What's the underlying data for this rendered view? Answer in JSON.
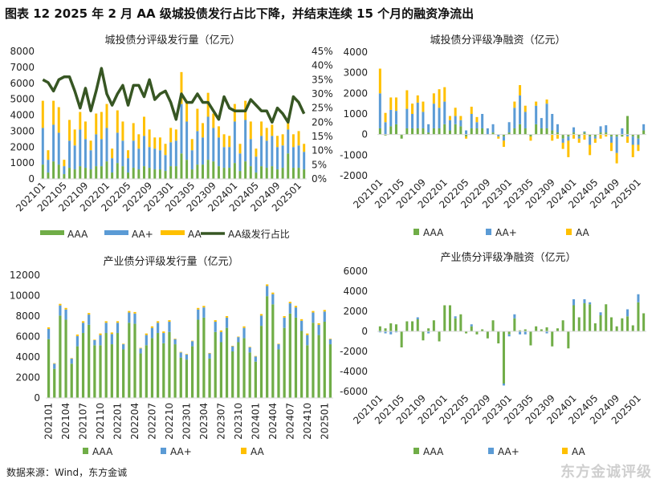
{
  "figure_title": "图表 12   2025 年 2 月 AA 级城投债发行占比下降，并结束连续 15 个月的融资净流出",
  "source": "数据来源：Wind，东方金诚",
  "watermark": "东方金诚评级",
  "colors": {
    "AAA": "#70ad47",
    "AA+": "#5b9bd5",
    "AA": "#ffc000",
    "line": "#375623"
  },
  "chart_data": [
    {
      "type": "bar",
      "stacked": true,
      "title": "城投债分评级发行量（亿元）",
      "ylim": [
        0,
        8000
      ],
      "yticks": [
        "0",
        "1000",
        "2000",
        "3000",
        "4000",
        "5000",
        "6000",
        "7000",
        "8000"
      ],
      "y2lim": [
        0,
        45
      ],
      "y2ticks": [
        "0%",
        "5%",
        "10%",
        "15%",
        "20%",
        "25%",
        "30%",
        "35%",
        "40%",
        "45%"
      ],
      "xtick_labels": [
        "202101",
        "202105",
        "202109",
        "202201",
        "202205",
        "202209",
        "202301",
        "202305",
        "202309",
        "202401",
        "202405",
        "202409",
        "202501"
      ],
      "legend_position": "bottom",
      "series": [
        {
          "name": "AAA",
          "values": [
            900,
            400,
            1100,
            900,
            300,
            700,
            600,
            800,
            700,
            600,
            800,
            800,
            1100,
            400,
            1000,
            800,
            400,
            700,
            600,
            800,
            700,
            600,
            600,
            500,
            800,
            800,
            1600,
            1200,
            600,
            900,
            900,
            1200,
            1100,
            800,
            700,
            700,
            1000,
            500,
            1100,
            800,
            400,
            800,
            700,
            800,
            600,
            700,
            1600,
            700,
            700,
            600
          ]
        },
        {
          "name": "AA+",
          "values": [
            2300,
            800,
            2300,
            2000,
            500,
            1700,
            1500,
            2300,
            1800,
            1200,
            2000,
            1700,
            2100,
            900,
            1900,
            1600,
            900,
            1700,
            1300,
            1900,
            1300,
            1300,
            1200,
            1000,
            1500,
            1600,
            3100,
            2400,
            1200,
            2100,
            1700,
            2700,
            2100,
            1800,
            1300,
            1300,
            2600,
            1100,
            2600,
            1700,
            1000,
            1900,
            1700,
            1900,
            1400,
            1400,
            1500,
            1300,
            1400,
            1100
          ]
        },
        {
          "name": "AA",
          "values": [
            1700,
            600,
            1500,
            1600,
            400,
            1300,
            1000,
            1100,
            1100,
            600,
            1300,
            1700,
            1500,
            600,
            1400,
            1200,
            500,
            1100,
            900,
            1200,
            1100,
            700,
            800,
            700,
            900,
            700,
            2000,
            1200,
            700,
            1400,
            900,
            1500,
            900,
            700,
            800,
            700,
            1100,
            600,
            1200,
            1100,
            500,
            900,
            800,
            700,
            700,
            700,
            600,
            800,
            900,
            500
          ]
        },
        {
          "name": "AA级发行占比",
          "type": "line",
          "axis": "right",
          "values": [
            35,
            34,
            31,
            35,
            36,
            36,
            31,
            25,
            32,
            24,
            31,
            39,
            30,
            26,
            30,
            33,
            26,
            33,
            33,
            29,
            35,
            28,
            30,
            31,
            27,
            21,
            30,
            27,
            27,
            30,
            27,
            27,
            24,
            21,
            29,
            25,
            24,
            24,
            24,
            28,
            26,
            24,
            24,
            20,
            25,
            23,
            20,
            29,
            27,
            23
          ]
        }
      ]
    },
    {
      "type": "bar",
      "stacked": true,
      "title": "城投债分评级净融资（亿元）",
      "ylim": [
        -2000,
        4000
      ],
      "yticks": [
        "-2000",
        "-1000",
        "0",
        "1000",
        "2000",
        "3000",
        "4000"
      ],
      "xtick_labels": [
        "202101",
        "202105",
        "202109",
        "202201",
        "202205",
        "202209",
        "202301",
        "202305",
        "202309",
        "202401",
        "202405",
        "202409",
        "202501"
      ],
      "legend_position": "bottom",
      "series": [
        {
          "name": "AAA",
          "values": [
            300,
            -50,
            400,
            500,
            -200,
            300,
            300,
            300,
            300,
            100,
            300,
            300,
            500,
            200,
            500,
            400,
            -100,
            300,
            300,
            300,
            0,
            100,
            0,
            -100,
            100,
            300,
            500,
            300,
            -100,
            500,
            300,
            300,
            200,
            100,
            -200,
            -100,
            100,
            -100,
            100,
            -100,
            -100,
            100,
            100,
            -100,
            -100,
            -100,
            900,
            -100,
            -200,
            200
          ]
        },
        {
          "name": "AA+",
          "values": [
            1700,
            600,
            800,
            650,
            0,
            950,
            700,
            1250,
            800,
            400,
            1200,
            1000,
            1100,
            500,
            400,
            300,
            200,
            700,
            300,
            700,
            300,
            400,
            -100,
            -200,
            500,
            1000,
            1400,
            800,
            0,
            900,
            500,
            1200,
            800,
            400,
            -200,
            -200,
            250,
            -100,
            50,
            -400,
            -100,
            300,
            350,
            -300,
            -800,
            300,
            -100,
            -400,
            -300,
            300
          ]
        },
        {
          "name": "AA",
          "values": [
            1200,
            450,
            600,
            650,
            0,
            900,
            500,
            350,
            500,
            0,
            500,
            900,
            700,
            200,
            400,
            200,
            -100,
            350,
            250,
            0,
            0,
            0,
            -100,
            -300,
            0,
            300,
            500,
            300,
            -200,
            200,
            0,
            200,
            -300,
            -200,
            -300,
            -800,
            -200,
            -200,
            -250,
            -500,
            -200,
            -200,
            -100,
            -400,
            -500,
            0,
            -300,
            -600,
            -300,
            0
          ]
        }
      ]
    },
    {
      "type": "bar",
      "stacked": true,
      "title": "产业债分评级发行量（亿元）",
      "ylim": [
        0,
        12000
      ],
      "yticks": [
        "0",
        "2000",
        "4000",
        "6000",
        "8000",
        "10000",
        "12000"
      ],
      "xtick_labels": [
        "202101",
        "202104",
        "202107",
        "202110",
        "202201",
        "202204",
        "202207",
        "202210",
        "202301",
        "202304",
        "202307",
        "202310",
        "202401",
        "202404",
        "202407",
        "202410",
        "202501"
      ],
      "legend_position": "bottom",
      "series": [
        {
          "name": "AAA",
          "values": [
            5750,
            2850,
            8050,
            7650,
            3350,
            5050,
            6350,
            7150,
            5150,
            5150,
            6350,
            5250,
            6350,
            4750,
            7350,
            7250,
            4350,
            5150,
            5850,
            6350,
            5350,
            6450,
            5250,
            3950,
            3750,
            5050,
            7650,
            7850,
            3850,
            6450,
            5450,
            6850,
            4550,
            5450,
            5850,
            4450,
            3550,
            7050,
            9950,
            9150,
            4750,
            6850,
            8250,
            7850,
            6550,
            5150,
            7350,
            6150,
            7450,
            5250
          ]
        },
        {
          "name": "AA+",
          "values": [
            1000,
            500,
            1000,
            1000,
            500,
            1000,
            1000,
            1000,
            500,
            1000,
            1000,
            1000,
            1000,
            500,
            1000,
            1000,
            500,
            1000,
            1000,
            1000,
            1000,
            1000,
            500,
            500,
            500,
            500,
            1000,
            1000,
            500,
            1000,
            1000,
            1000,
            500,
            500,
            1000,
            500,
            500,
            1000,
            1000,
            1000,
            500,
            1000,
            1000,
            1000,
            1000,
            1000,
            1000,
            1000,
            1000,
            500
          ]
        },
        {
          "name": "AA",
          "values": [
            150,
            50,
            150,
            150,
            50,
            150,
            150,
            150,
            50,
            150,
            150,
            150,
            150,
            50,
            150,
            150,
            50,
            150,
            150,
            150,
            150,
            150,
            50,
            50,
            50,
            50,
            150,
            150,
            50,
            150,
            150,
            150,
            50,
            50,
            150,
            50,
            50,
            150,
            150,
            150,
            50,
            150,
            150,
            150,
            150,
            150,
            150,
            150,
            150,
            50
          ]
        }
      ]
    },
    {
      "type": "bar",
      "stacked": true,
      "title": "产业债分评级净融资（亿元）",
      "ylim": [
        -6000,
        6000
      ],
      "yticks": [
        "-6000",
        "-4000",
        "-2000",
        "0",
        "2000",
        "4000",
        "6000"
      ],
      "xtick_labels": [
        "202101",
        "202105",
        "202109",
        "202201",
        "202205",
        "202209",
        "202301",
        "202305",
        "202309",
        "202401",
        "202405",
        "202409",
        "202501"
      ],
      "legend_position": "bottom",
      "series": [
        {
          "name": "AAA",
          "values": [
            500,
            300,
            800,
            700,
            -1600,
            1000,
            1000,
            1200,
            -900,
            300,
            1100,
            -1000,
            2600,
            2600,
            1300,
            1700,
            -200,
            500,
            -300,
            200,
            -700,
            1100,
            -1200,
            -5200,
            -300,
            1300,
            100,
            200,
            -1400,
            500,
            200,
            400,
            -1500,
            300,
            1100,
            -1700,
            2600,
            1400,
            2800,
            2700,
            800,
            1600,
            2700,
            1400,
            500,
            1300,
            1500,
            600,
            2900,
            1800
          ]
        },
        {
          "name": "AA+",
          "values": [
            -100,
            -200,
            -300,
            -100,
            0,
            0,
            0,
            200,
            0,
            -200,
            0,
            0,
            0,
            0,
            200,
            0,
            0,
            200,
            0,
            0,
            0,
            0,
            0,
            -200,
            -200,
            400,
            -300,
            -300,
            0,
            0,
            0,
            -200,
            0,
            0,
            0,
            0,
            600,
            0,
            400,
            200,
            0,
            300,
            0,
            0,
            0,
            0,
            700,
            0,
            800,
            0
          ]
        },
        {
          "name": "AA",
          "values": [
            0,
            0,
            0,
            0,
            0,
            0,
            0,
            0,
            0,
            0,
            0,
            0,
            0,
            0,
            0,
            0,
            0,
            0,
            0,
            0,
            0,
            0,
            0,
            0,
            0,
            0,
            0,
            0,
            0,
            0,
            0,
            0,
            0,
            0,
            0,
            0,
            0,
            0,
            0,
            0,
            0,
            0,
            0,
            0,
            0,
            0,
            0,
            0,
            0,
            0
          ]
        }
      ]
    }
  ]
}
